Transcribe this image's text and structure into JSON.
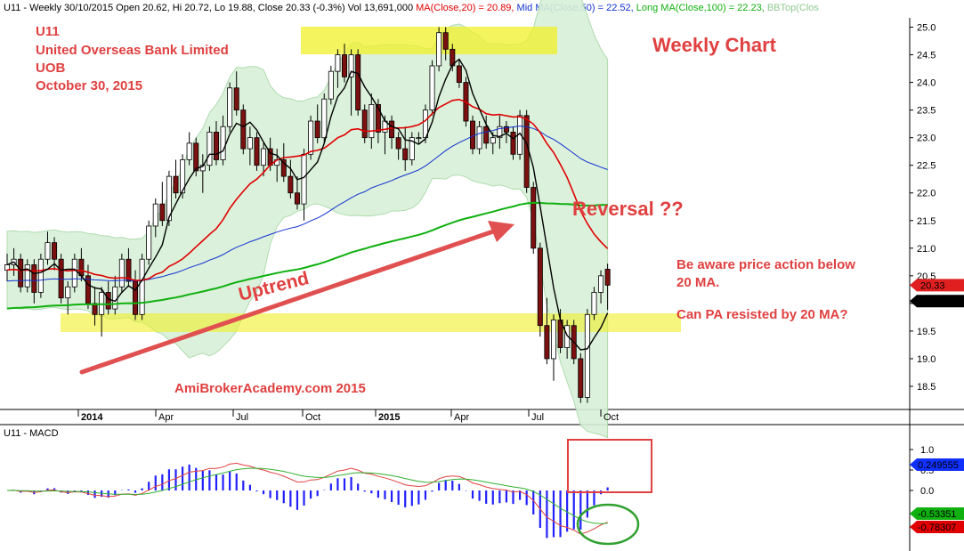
{
  "header": {
    "segments": [
      {
        "text": "U11 - Weekly 30/10/2015 Open 20.62, Hi 20.72, Lo 19.88, Close 20.33 (-0.3%) Vol 13,691,000 ",
        "color": "#000000"
      },
      {
        "text": "MA(Close,20) = 20.89, ",
        "color": "#e00000"
      },
      {
        "text": "Mid MA(Close,50) = 22.52, ",
        "color": "#1030d0"
      },
      {
        "text": "Long MA(Close,100) = 22.23, ",
        "color": "#10b010"
      },
      {
        "text": "BBTop(Clos",
        "color": "#90c890"
      }
    ]
  },
  "info": {
    "ticker": "U11",
    "name": "United Overseas Bank Limited",
    "abbr": "UOB",
    "date": "October 30, 2015"
  },
  "annotations": {
    "weekly": "Weekly Chart",
    "reversal": "Reversal ??",
    "uptrend": "Uptrend",
    "note1a": "Be aware price action below",
    "note1b": "20 MA.",
    "note2": "Can PA resisted by 20 MA?",
    "watermark": "AmiBrokerAcademy.com 2015"
  },
  "price_axis": {
    "ticks": [
      "25.0",
      "24.5",
      "24.0",
      "23.5",
      "23.0",
      "22.5",
      "22.0",
      "21.5",
      "21.0",
      "20.5",
      "20.0",
      "19.5",
      "19.0",
      "18.5"
    ],
    "last_close": "20.33",
    "bb_value": "20.0422"
  },
  "time_axis": {
    "labels": [
      "2014",
      "Apr",
      "Jul",
      "Oct",
      "2015",
      "Apr",
      "Jul",
      "Oct"
    ],
    "bold": [
      true,
      false,
      false,
      false,
      true,
      false,
      false,
      false
    ]
  },
  "macd_panel": {
    "title": "U11 - MACD",
    "ticks": [
      "1.0",
      "0.5",
      "0.0"
    ],
    "values": [
      "0.249555",
      "-0.53351",
      "-0.78307"
    ],
    "value_colors": [
      "#1030ff",
      "#10b010",
      "#e00000"
    ]
  },
  "colors": {
    "up": "#ffffff",
    "down": "#000000",
    "ma20": "#e00000",
    "ma50": "#1030d0",
    "ma100": "#10b010",
    "bb_fill": "#d8f0d8",
    "bb_line": "#a8d8a8",
    "highlight": "#f0f028",
    "arrow": "#e05050",
    "circle": "#30a030",
    "box": "#e04040",
    "macd_hist": "#2020ff",
    "macd_line": "#e04040",
    "signal_line": "#30b030"
  },
  "chart_data": [
    {
      "type": "candlestick",
      "title": "",
      "frequency": "weekly",
      "x_range": [
        "2013-11",
        "2015-10-30"
      ],
      "ylim": [
        18.0,
        25.2
      ],
      "grid": false,
      "candles": [
        [
          20.6,
          20.9,
          20.4,
          20.7
        ],
        [
          20.7,
          21.0,
          20.5,
          20.8
        ],
        [
          20.8,
          20.9,
          20.2,
          20.3
        ],
        [
          20.3,
          20.8,
          20.2,
          20.7
        ],
        [
          20.7,
          20.8,
          20.0,
          20.2
        ],
        [
          20.2,
          20.9,
          20.1,
          20.8
        ],
        [
          20.8,
          21.3,
          20.7,
          21.1
        ],
        [
          21.1,
          21.2,
          20.6,
          20.8
        ],
        [
          20.8,
          20.9,
          20.0,
          20.1
        ],
        [
          20.1,
          20.4,
          19.8,
          20.3
        ],
        [
          20.3,
          20.9,
          20.2,
          20.8
        ],
        [
          20.8,
          21.0,
          20.4,
          20.5
        ],
        [
          20.5,
          20.7,
          19.9,
          20.0
        ],
        [
          20.0,
          20.3,
          19.6,
          19.8
        ],
        [
          19.8,
          20.3,
          19.4,
          20.2
        ],
        [
          20.2,
          20.4,
          19.8,
          19.9
        ],
        [
          19.9,
          20.5,
          19.8,
          20.3
        ],
        [
          20.3,
          20.9,
          20.2,
          20.8
        ],
        [
          20.8,
          21.0,
          20.3,
          20.4
        ],
        [
          20.4,
          20.6,
          19.7,
          19.8
        ],
        [
          19.8,
          20.9,
          19.7,
          20.8
        ],
        [
          20.8,
          21.5,
          20.7,
          21.4
        ],
        [
          21.4,
          21.9,
          21.2,
          21.8
        ],
        [
          21.8,
          22.2,
          21.4,
          21.5
        ],
        [
          21.5,
          22.4,
          21.4,
          22.3
        ],
        [
          22.3,
          22.6,
          21.9,
          22.0
        ],
        [
          22.0,
          22.7,
          21.9,
          22.6
        ],
        [
          22.6,
          23.1,
          22.5,
          22.9
        ],
        [
          22.9,
          23.0,
          22.3,
          22.4
        ],
        [
          22.4,
          22.7,
          22.0,
          22.5
        ],
        [
          22.5,
          23.2,
          22.4,
          23.1
        ],
        [
          23.1,
          23.3,
          22.5,
          22.6
        ],
        [
          22.6,
          23.4,
          22.5,
          23.2
        ],
        [
          23.2,
          24.0,
          23.1,
          23.9
        ],
        [
          23.9,
          24.2,
          23.4,
          23.5
        ],
        [
          23.5,
          23.6,
          22.7,
          22.8
        ],
        [
          22.8,
          23.2,
          22.5,
          23.0
        ],
        [
          23.0,
          23.1,
          22.4,
          22.5
        ],
        [
          22.5,
          22.9,
          22.3,
          22.8
        ],
        [
          22.8,
          23.0,
          22.4,
          22.5
        ],
        [
          22.5,
          22.8,
          22.2,
          22.6
        ],
        [
          22.6,
          22.9,
          22.2,
          22.3
        ],
        [
          22.3,
          22.6,
          21.9,
          22.0
        ],
        [
          22.0,
          22.3,
          21.7,
          21.8
        ],
        [
          21.8,
          22.8,
          21.5,
          22.7
        ],
        [
          22.7,
          23.4,
          22.6,
          23.3
        ],
        [
          23.3,
          23.6,
          22.9,
          23.0
        ],
        [
          23.0,
          23.8,
          22.9,
          23.7
        ],
        [
          23.7,
          24.3,
          23.6,
          24.2
        ],
        [
          24.2,
          24.6,
          23.9,
          24.5
        ],
        [
          24.5,
          24.7,
          24.0,
          24.1
        ],
        [
          24.1,
          24.6,
          23.4,
          24.5
        ],
        [
          24.5,
          24.6,
          23.4,
          23.5
        ],
        [
          23.5,
          23.6,
          22.9,
          23.0
        ],
        [
          23.0,
          23.8,
          22.8,
          23.6
        ],
        [
          23.6,
          23.7,
          22.9,
          23.1
        ],
        [
          23.1,
          23.4,
          22.7,
          23.3
        ],
        [
          23.3,
          23.4,
          22.8,
          23.0
        ],
        [
          23.0,
          23.1,
          22.6,
          22.8
        ],
        [
          22.8,
          23.2,
          22.4,
          22.6
        ],
        [
          22.6,
          23.1,
          22.5,
          23.0
        ],
        [
          23.0,
          23.1,
          22.9,
          23.0
        ],
        [
          23.0,
          23.6,
          22.9,
          23.5
        ],
        [
          23.5,
          24.4,
          23.4,
          24.3
        ],
        [
          24.3,
          25.0,
          24.2,
          24.9
        ],
        [
          24.9,
          25.0,
          24.4,
          24.6
        ],
        [
          24.6,
          24.7,
          24.2,
          24.3
        ],
        [
          24.3,
          24.4,
          23.9,
          24.0
        ],
        [
          24.0,
          24.1,
          23.2,
          23.3
        ],
        [
          23.3,
          23.4,
          22.7,
          22.8
        ],
        [
          22.8,
          23.3,
          22.7,
          23.2
        ],
        [
          23.2,
          23.4,
          22.8,
          22.9
        ],
        [
          22.9,
          23.1,
          22.7,
          23.0
        ],
        [
          23.0,
          23.4,
          22.8,
          23.2
        ],
        [
          23.2,
          23.3,
          22.9,
          23.1
        ],
        [
          23.1,
          23.2,
          22.6,
          22.7
        ],
        [
          22.7,
          23.5,
          22.6,
          23.4
        ],
        [
          23.4,
          23.5,
          22.0,
          22.1
        ],
        [
          22.1,
          22.2,
          20.9,
          21.0
        ],
        [
          21.0,
          21.1,
          19.4,
          19.6
        ],
        [
          19.6,
          20.1,
          18.9,
          19.0
        ],
        [
          19.0,
          19.8,
          18.6,
          19.7
        ],
        [
          19.7,
          19.9,
          19.1,
          19.2
        ],
        [
          19.2,
          19.7,
          19.0,
          19.6
        ],
        [
          19.6,
          19.7,
          18.9,
          19.0
        ],
        [
          19.0,
          19.1,
          18.2,
          18.3
        ],
        [
          18.3,
          19.9,
          18.2,
          19.8
        ],
        [
          19.8,
          20.3,
          19.7,
          20.2
        ],
        [
          20.2,
          20.6,
          20.0,
          20.5
        ],
        [
          20.62,
          20.72,
          19.88,
          20.33
        ]
      ],
      "ma20_last": 20.89,
      "ma50_last": 22.52,
      "ma100_last": 22.23
    },
    {
      "type": "bar",
      "title": "U11 - MACD",
      "ylim": [
        -0.9,
        1.2
      ],
      "ticks": [
        1.0,
        0.5,
        0.0
      ],
      "last_values": {
        "histogram": 0.249555,
        "macd": -0.53351,
        "signal": -0.78307
      }
    }
  ]
}
